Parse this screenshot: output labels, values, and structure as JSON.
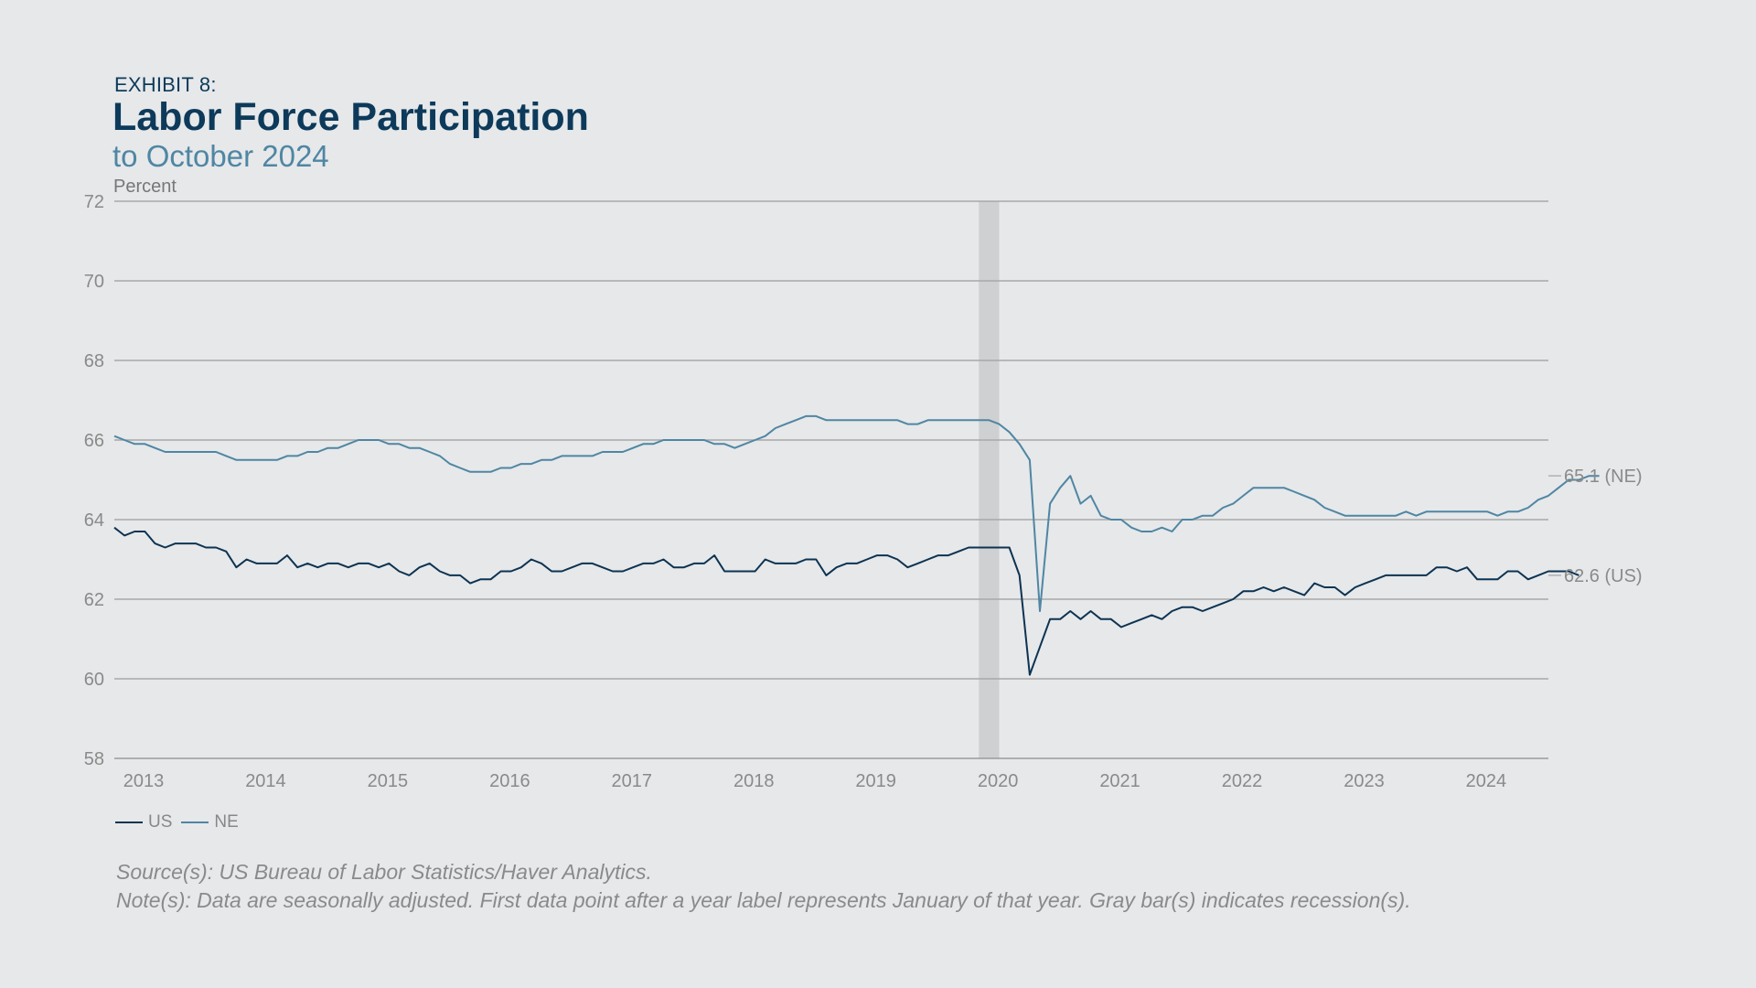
{
  "header": {
    "exhibit": "EXHIBIT 8:",
    "title": "Labor Force Participation",
    "subtitle": "to October 2024"
  },
  "chart_data": {
    "type": "line",
    "ylabel": "Percent",
    "ylim": [
      58,
      72
    ],
    "yticks": [
      58,
      60,
      62,
      64,
      66,
      68,
      70,
      72
    ],
    "xticks": [
      "2013",
      "2014",
      "2015",
      "2016",
      "2017",
      "2018",
      "2019",
      "2020",
      "2021",
      "2022",
      "2023",
      "2024"
    ],
    "x_start": "2013-01",
    "x_end": "2024-10",
    "grid": true,
    "legend_position": "bottom-left",
    "recessions": [
      {
        "start": "2020-02",
        "end": "2020-04"
      }
    ],
    "series": [
      {
        "name": "US",
        "color": "#0d3351",
        "end_label": "62.6 (US)",
        "values": [
          63.8,
          63.6,
          63.7,
          63.7,
          63.4,
          63.3,
          63.4,
          63.4,
          63.4,
          63.3,
          63.3,
          63.2,
          62.8,
          63.0,
          62.9,
          62.9,
          62.9,
          63.1,
          62.8,
          62.9,
          62.8,
          62.9,
          62.9,
          62.8,
          62.9,
          62.9,
          62.8,
          62.9,
          62.7,
          62.6,
          62.8,
          62.9,
          62.7,
          62.6,
          62.6,
          62.4,
          62.5,
          62.5,
          62.7,
          62.7,
          62.8,
          63.0,
          62.9,
          62.7,
          62.7,
          62.8,
          62.9,
          62.9,
          62.8,
          62.7,
          62.7,
          62.8,
          62.9,
          62.9,
          63.0,
          62.8,
          62.8,
          62.9,
          62.9,
          63.1,
          62.7,
          62.7,
          62.7,
          62.7,
          63.0,
          62.9,
          62.9,
          62.9,
          63.0,
          63.0,
          62.6,
          62.8,
          62.9,
          62.9,
          63.0,
          63.1,
          63.1,
          63.0,
          62.8,
          62.9,
          63.0,
          63.1,
          63.1,
          63.2,
          63.3,
          63.3,
          63.3,
          63.3,
          63.3,
          62.6,
          60.1,
          60.8,
          61.5,
          61.5,
          61.7,
          61.5,
          61.7,
          61.5,
          61.5,
          61.3,
          61.4,
          61.5,
          61.6,
          61.5,
          61.7,
          61.8,
          61.8,
          61.7,
          61.8,
          61.9,
          62.0,
          62.2,
          62.2,
          62.3,
          62.2,
          62.3,
          62.2,
          62.1,
          62.4,
          62.3,
          62.3,
          62.1,
          62.3,
          62.4,
          62.5,
          62.6,
          62.6,
          62.6,
          62.6,
          62.6,
          62.8,
          62.8,
          62.7,
          62.8,
          62.5,
          62.5,
          62.5,
          62.7,
          62.7,
          62.5,
          62.6,
          62.7,
          62.7,
          62.7,
          62.6
        ]
      },
      {
        "name": "NE",
        "color": "#4f86a3",
        "end_label": "65.1 (NE)",
        "values": [
          66.1,
          66.0,
          65.9,
          65.9,
          65.8,
          65.7,
          65.7,
          65.7,
          65.7,
          65.7,
          65.7,
          65.6,
          65.5,
          65.5,
          65.5,
          65.5,
          65.5,
          65.6,
          65.6,
          65.7,
          65.7,
          65.8,
          65.8,
          65.9,
          66.0,
          66.0,
          66.0,
          65.9,
          65.9,
          65.8,
          65.8,
          65.7,
          65.6,
          65.4,
          65.3,
          65.2,
          65.2,
          65.2,
          65.3,
          65.3,
          65.4,
          65.4,
          65.5,
          65.5,
          65.6,
          65.6,
          65.6,
          65.6,
          65.7,
          65.7,
          65.7,
          65.8,
          65.9,
          65.9,
          66.0,
          66.0,
          66.0,
          66.0,
          66.0,
          65.9,
          65.9,
          65.8,
          65.9,
          66.0,
          66.1,
          66.3,
          66.4,
          66.5,
          66.6,
          66.6,
          66.5,
          66.5,
          66.5,
          66.5,
          66.5,
          66.5,
          66.5,
          66.5,
          66.4,
          66.4,
          66.5,
          66.5,
          66.5,
          66.5,
          66.5,
          66.5,
          66.5,
          66.4,
          66.2,
          65.9,
          65.5,
          61.7,
          64.4,
          64.8,
          65.1,
          64.4,
          64.6,
          64.1,
          64.0,
          64.0,
          63.8,
          63.7,
          63.7,
          63.8,
          63.7,
          64.0,
          64.0,
          64.1,
          64.1,
          64.3,
          64.4,
          64.6,
          64.8,
          64.8,
          64.8,
          64.8,
          64.7,
          64.6,
          64.5,
          64.3,
          64.2,
          64.1,
          64.1,
          64.1,
          64.1,
          64.1,
          64.1,
          64.2,
          64.1,
          64.2,
          64.2,
          64.2,
          64.2,
          64.2,
          64.2,
          64.2,
          64.1,
          64.2,
          64.2,
          64.3,
          64.5,
          64.6,
          64.8,
          65.0,
          65.0,
          65.1,
          65.1
        ]
      }
    ]
  },
  "footer": {
    "source": "Source(s): US Bureau of Labor Statistics/Haver Analytics.",
    "note": "Note(s): Data are seasonally adjusted. First data point after a year label represents January of that year. Gray bar(s) indicates recession(s)."
  }
}
